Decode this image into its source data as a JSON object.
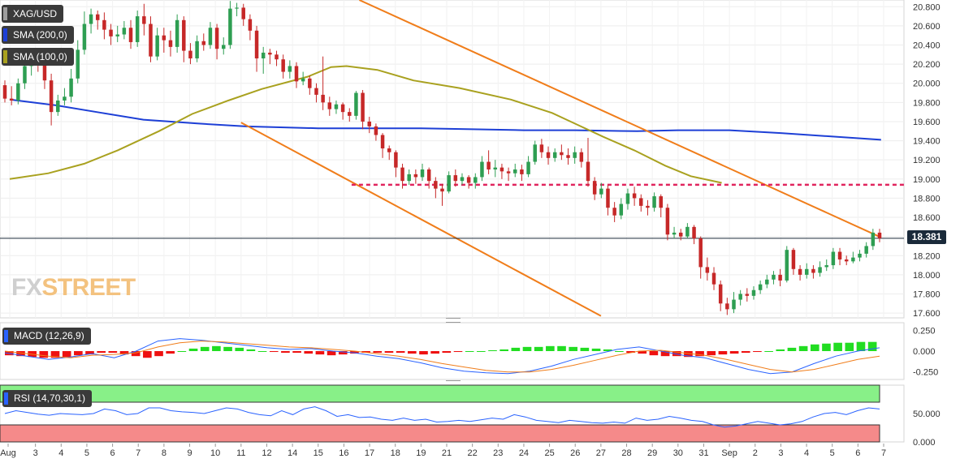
{
  "symbol": "XAG/USD",
  "legend": [
    {
      "label": "SMA (200,0)",
      "color": "#1d3fd6"
    },
    {
      "label": "SMA (100,0)",
      "color": "#a9a11f"
    }
  ],
  "last_price": "18.381",
  "watermark": {
    "part1": "FX",
    "part2": "STREET"
  },
  "chart_data": {
    "type": "candlestick",
    "y_ticks": [
      "20.800",
      "20.600",
      "20.400",
      "20.200",
      "20.000",
      "19.800",
      "19.600",
      "19.400",
      "19.200",
      "19.000",
      "18.800",
      "18.600",
      "18.400",
      "18.200",
      "18.000",
      "17.800",
      "17.600"
    ],
    "ylim": [
      17.55,
      20.87
    ],
    "x_ticks": [
      "Aug",
      "3",
      "4",
      "5",
      "6",
      "7",
      "8",
      "9",
      "10",
      "11",
      "12",
      "14",
      "15",
      "16",
      "17",
      "18",
      "19",
      "21",
      "22",
      "23",
      "24",
      "25",
      "26",
      "27",
      "28",
      "29",
      "30",
      "31",
      "Sep",
      "2",
      "3",
      "4",
      "5",
      "6",
      "7"
    ],
    "session_count": 34,
    "series": [
      {
        "name": "SMA (200,0)",
        "color": "#1d3fd6",
        "points": [
          [
            0,
            19.83
          ],
          [
            1.8,
            19.77
          ],
          [
            3.6,
            19.69
          ],
          [
            5.2,
            19.62
          ],
          [
            7.3,
            19.58
          ],
          [
            9.2,
            19.55
          ],
          [
            12,
            19.53
          ],
          [
            16,
            19.53
          ],
          [
            18,
            19.52
          ],
          [
            20,
            19.51
          ],
          [
            22,
            19.51
          ],
          [
            24.4,
            19.5
          ],
          [
            26,
            19.51
          ],
          [
            28,
            19.51
          ],
          [
            30,
            19.48
          ],
          [
            33.9,
            19.41
          ]
        ]
      },
      {
        "name": "SMA (100,0)",
        "color": "#a9a11f",
        "points": [
          [
            0,
            19.0
          ],
          [
            1.5,
            19.06
          ],
          [
            2.9,
            19.16
          ],
          [
            4.2,
            19.3
          ],
          [
            5.8,
            19.5
          ],
          [
            7.1,
            19.68
          ],
          [
            8.5,
            19.82
          ],
          [
            9.8,
            19.94
          ],
          [
            11.6,
            20.07
          ],
          [
            12.5,
            20.17
          ],
          [
            13.1,
            20.18
          ],
          [
            14.3,
            20.14
          ],
          [
            15.7,
            20.03
          ],
          [
            17.5,
            19.95
          ],
          [
            19.5,
            19.83
          ],
          [
            21.1,
            19.69
          ],
          [
            21.9,
            19.59
          ],
          [
            23.1,
            19.44
          ],
          [
            24.3,
            19.3
          ],
          [
            25.5,
            19.14
          ],
          [
            26.5,
            19.03
          ],
          [
            27.7,
            18.96
          ]
        ]
      },
      {
        "name": "",
        "color": "#2962ff",
        "values": [
          19.7,
          19.72,
          19.78,
          19.88,
          19.95,
          19.98,
          20.05,
          20.12,
          20.2,
          20.08,
          19.92,
          19.8,
          19.7,
          19.6,
          19.58,
          19.55,
          19.42,
          19.1,
          19.0,
          18.96,
          19.05,
          19.12,
          19.2,
          19.25,
          18.95,
          18.75,
          18.62,
          18.4,
          18.05,
          17.85,
          17.72,
          17.85,
          18.02,
          18.15,
          18.3,
          18.38
        ]
      }
    ],
    "candles": [
      [
        19.98,
        19.84,
        20.03,
        19.8
      ],
      [
        19.84,
        19.82,
        19.97,
        19.77
      ],
      [
        19.82,
        20.0,
        20.05,
        19.78
      ],
      [
        20.0,
        20.18,
        20.3,
        19.94
      ],
      [
        20.18,
        20.27,
        20.35,
        20.08
      ],
      [
        20.27,
        20.24,
        20.33,
        20.12
      ],
      [
        20.24,
        20.03,
        20.27,
        19.94
      ],
      [
        20.03,
        19.7,
        20.1,
        19.56
      ],
      [
        19.7,
        19.82,
        19.88,
        19.66
      ],
      [
        19.82,
        19.86,
        19.95,
        19.77
      ],
      [
        19.86,
        20.05,
        20.15,
        19.8
      ],
      [
        20.05,
        20.35,
        20.45,
        20.0
      ],
      [
        20.35,
        20.62,
        20.75,
        20.3
      ],
      [
        20.62,
        20.72,
        20.78,
        20.52
      ],
      [
        20.72,
        20.66,
        20.76,
        20.56
      ],
      [
        20.66,
        20.56,
        20.74,
        20.46
      ],
      [
        20.56,
        20.49,
        20.62,
        20.4
      ],
      [
        20.49,
        20.51,
        20.6,
        20.43
      ],
      [
        20.51,
        20.58,
        20.65,
        20.46
      ],
      [
        20.58,
        20.43,
        20.66,
        20.36
      ],
      [
        20.43,
        20.7,
        20.76,
        20.38
      ],
      [
        20.7,
        20.62,
        20.83,
        20.5
      ],
      [
        20.62,
        20.28,
        20.7,
        20.22
      ],
      [
        20.28,
        20.5,
        20.58,
        20.24
      ],
      [
        20.5,
        20.45,
        20.58,
        20.32
      ],
      [
        20.45,
        20.38,
        20.55,
        20.28
      ],
      [
        20.38,
        20.66,
        20.72,
        20.32
      ],
      [
        20.66,
        20.34,
        20.7,
        20.22
      ],
      [
        20.34,
        20.26,
        20.42,
        20.2
      ],
      [
        20.26,
        20.44,
        20.5,
        20.22
      ],
      [
        20.44,
        20.4,
        20.52,
        20.34
      ],
      [
        20.4,
        20.58,
        20.64,
        20.36
      ],
      [
        20.58,
        20.36,
        20.62,
        20.25
      ],
      [
        20.36,
        20.4,
        20.48,
        20.3
      ],
      [
        20.4,
        20.78,
        20.86,
        20.36
      ],
      [
        20.78,
        20.79,
        20.84,
        20.7
      ],
      [
        20.79,
        20.67,
        20.83,
        20.6
      ],
      [
        20.67,
        20.55,
        20.72,
        20.45
      ],
      [
        20.55,
        20.26,
        20.6,
        20.12
      ],
      [
        20.26,
        20.32,
        20.38,
        20.1
      ],
      [
        20.32,
        20.3,
        20.36,
        20.2
      ],
      [
        20.3,
        20.25,
        20.34,
        20.18
      ],
      [
        20.25,
        20.12,
        20.3,
        20.05
      ],
      [
        20.12,
        20.18,
        20.24,
        20.05
      ],
      [
        20.18,
        20.02,
        20.22,
        19.95
      ],
      [
        20.02,
        20.05,
        20.12,
        19.98
      ],
      [
        20.05,
        19.95,
        20.08,
        19.88
      ],
      [
        19.95,
        19.88,
        20.0,
        19.8
      ],
      [
        19.88,
        19.8,
        20.28,
        19.72
      ],
      [
        19.8,
        19.73,
        19.86,
        19.66
      ],
      [
        19.73,
        19.78,
        19.82,
        19.68
      ],
      [
        19.78,
        19.7,
        19.8,
        19.62
      ],
      [
        19.7,
        19.66,
        19.74,
        19.6
      ],
      [
        19.66,
        19.9,
        19.92,
        19.62
      ],
      [
        19.9,
        19.6,
        19.93,
        19.52
      ],
      [
        19.6,
        19.55,
        19.65,
        19.48
      ],
      [
        19.55,
        19.46,
        19.58,
        19.4
      ],
      [
        19.46,
        19.32,
        19.48,
        19.22
      ],
      [
        19.32,
        19.28,
        19.35,
        19.2
      ],
      [
        19.28,
        19.12,
        19.3,
        19.02
      ],
      [
        19.12,
        18.98,
        19.16,
        18.9
      ],
      [
        18.98,
        19.05,
        19.1,
        18.94
      ],
      [
        19.05,
        19.02,
        19.1,
        18.95
      ],
      [
        19.02,
        19.1,
        19.16,
        18.98
      ],
      [
        19.1,
        18.98,
        19.12,
        18.9
      ],
      [
        18.98,
        18.9,
        19.02,
        18.8
      ],
      [
        18.9,
        18.87,
        18.95,
        18.72
      ],
      [
        18.87,
        19.04,
        19.08,
        18.85
      ],
      [
        19.04,
        18.98,
        19.1,
        18.92
      ],
      [
        18.98,
        19.02,
        19.06,
        18.94
      ],
      [
        19.02,
        18.96,
        19.04,
        18.9
      ],
      [
        18.96,
        19.02,
        19.06,
        18.9
      ],
      [
        19.02,
        19.18,
        19.24,
        18.98
      ],
      [
        19.18,
        19.1,
        19.3,
        19.05
      ],
      [
        19.1,
        19.12,
        19.2,
        19.02
      ],
      [
        19.12,
        19.08,
        19.16,
        19.0
      ],
      [
        19.08,
        19.06,
        19.12,
        18.98
      ],
      [
        19.06,
        19.1,
        19.16,
        19.02
      ],
      [
        19.1,
        19.05,
        19.15,
        18.98
      ],
      [
        19.05,
        19.18,
        19.24,
        19.02
      ],
      [
        19.18,
        19.36,
        19.4,
        19.15
      ],
      [
        19.36,
        19.28,
        19.42,
        19.22
      ],
      [
        19.28,
        19.22,
        19.34,
        19.15
      ],
      [
        19.22,
        19.28,
        19.32,
        19.18
      ],
      [
        19.28,
        19.25,
        19.36,
        19.2
      ],
      [
        19.25,
        19.22,
        19.32,
        19.15
      ],
      [
        19.22,
        19.28,
        19.34,
        19.16
      ],
      [
        19.28,
        19.18,
        19.32,
        19.12
      ],
      [
        19.18,
        18.98,
        19.43,
        18.92
      ],
      [
        18.98,
        18.84,
        19.02,
        18.78
      ],
      [
        18.84,
        18.9,
        18.96,
        18.8
      ],
      [
        18.9,
        18.7,
        18.94,
        18.62
      ],
      [
        18.7,
        18.62,
        18.76,
        18.55
      ],
      [
        18.62,
        18.74,
        18.8,
        18.58
      ],
      [
        18.74,
        18.85,
        18.9,
        18.68
      ],
      [
        18.85,
        18.8,
        18.92,
        18.72
      ],
      [
        18.8,
        18.72,
        18.84,
        18.66
      ],
      [
        18.72,
        18.7,
        18.78,
        18.62
      ],
      [
        18.7,
        18.82,
        18.86,
        18.66
      ],
      [
        18.82,
        18.7,
        18.84,
        18.6
      ],
      [
        18.7,
        18.42,
        18.74,
        18.36
      ],
      [
        18.42,
        18.44,
        18.5,
        18.38
      ],
      [
        18.44,
        18.4,
        18.48,
        18.36
      ],
      [
        18.4,
        18.5,
        18.54,
        18.38
      ],
      [
        18.5,
        18.38,
        18.52,
        18.32
      ],
      [
        18.38,
        18.08,
        18.4,
        17.96
      ],
      [
        18.08,
        18.02,
        18.18,
        17.94
      ],
      [
        18.02,
        17.9,
        18.08,
        17.84
      ],
      [
        17.9,
        17.7,
        17.94,
        17.62
      ],
      [
        17.7,
        17.64,
        17.76,
        17.58
      ],
      [
        17.64,
        17.74,
        17.82,
        17.6
      ],
      [
        17.74,
        17.8,
        17.84,
        17.68
      ],
      [
        17.8,
        17.78,
        17.86,
        17.72
      ],
      [
        17.78,
        17.84,
        17.88,
        17.74
      ],
      [
        17.84,
        17.9,
        17.94,
        17.8
      ],
      [
        17.9,
        17.95,
        18.0,
        17.86
      ],
      [
        17.95,
        18.0,
        18.04,
        17.9
      ],
      [
        18.0,
        17.94,
        18.06,
        17.88
      ],
      [
        17.94,
        18.26,
        18.3,
        17.92
      ],
      [
        18.26,
        18.06,
        18.28,
        18.0
      ],
      [
        18.06,
        18.0,
        18.1,
        17.94
      ],
      [
        18.0,
        18.06,
        18.12,
        17.96
      ],
      [
        18.06,
        18.02,
        18.1,
        17.96
      ],
      [
        18.02,
        18.08,
        18.14,
        17.98
      ],
      [
        18.08,
        18.1,
        18.16,
        18.04
      ],
      [
        18.1,
        18.24,
        18.28,
        18.06
      ],
      [
        18.24,
        18.16,
        18.28,
        18.1
      ],
      [
        18.16,
        18.14,
        18.2,
        18.1
      ],
      [
        18.14,
        18.18,
        18.24,
        18.12
      ],
      [
        18.18,
        18.22,
        18.26,
        18.14
      ],
      [
        18.22,
        18.3,
        18.34,
        18.18
      ],
      [
        18.3,
        18.44,
        18.48,
        18.26
      ],
      [
        18.44,
        18.381,
        18.48,
        18.34
      ]
    ],
    "channel_upper": [
      [
        13.6,
        20.87
      ],
      [
        33.9,
        18.39
      ]
    ],
    "channel_lower": [
      [
        9.0,
        19.59
      ],
      [
        23.0,
        17.57
      ]
    ],
    "support_level": 18.94,
    "support_from": 13.3,
    "macd": {
      "label": "MACD (12,26,9)",
      "ticks": [
        "0.250",
        "0.000",
        "-0.250"
      ],
      "ylim": [
        -0.34,
        0.34
      ],
      "histogram": [
        -0.05,
        -0.06,
        -0.07,
        -0.08,
        -0.08,
        -0.07,
        -0.05,
        -0.04,
        -0.02,
        -0.02,
        -0.04,
        -0.06,
        -0.08,
        -0.06,
        -0.03,
        0.0,
        0.03,
        0.05,
        0.06,
        0.05,
        0.04,
        0.02,
        0.0,
        -0.01,
        -0.02,
        -0.02,
        -0.03,
        -0.04,
        -0.05,
        -0.04,
        -0.03,
        -0.02,
        -0.02,
        -0.02,
        -0.02,
        -0.03,
        -0.04,
        -0.03,
        -0.02,
        -0.01,
        0.0,
        0.0,
        0.01,
        0.02,
        0.04,
        0.05,
        0.05,
        0.06,
        0.06,
        0.05,
        0.04,
        0.03,
        0.02,
        0.0,
        -0.02,
        -0.03,
        -0.05,
        -0.06,
        -0.06,
        -0.07,
        -0.06,
        -0.05,
        -0.04,
        -0.03,
        -0.02,
        -0.01,
        0.0,
        0.02,
        0.04,
        0.06,
        0.08,
        0.09,
        0.1,
        0.1,
        0.11,
        0.11
      ],
      "macd_line": [
        -0.02,
        -0.06,
        -0.1,
        -0.07,
        -0.03,
        -0.08,
        0.0,
        0.12,
        0.15,
        0.13,
        0.1,
        0.07,
        0.04,
        0.02,
        0.03,
        0.0,
        -0.02,
        -0.06,
        -0.09,
        -0.14,
        -0.2,
        -0.24,
        -0.26,
        -0.27,
        -0.24,
        -0.18,
        -0.1,
        -0.04,
        0.02,
        0.05,
        0.0,
        -0.05,
        -0.08,
        -0.15,
        -0.22,
        -0.27,
        -0.25,
        -0.15,
        -0.06,
        0.0,
        0.04
      ],
      "signal_line": [
        0.0,
        -0.03,
        -0.06,
        -0.08,
        -0.05,
        -0.04,
        -0.02,
        0.05,
        0.1,
        0.12,
        0.11,
        0.09,
        0.07,
        0.05,
        0.04,
        0.02,
        0.0,
        -0.03,
        -0.06,
        -0.1,
        -0.15,
        -0.19,
        -0.23,
        -0.25,
        -0.25,
        -0.22,
        -0.17,
        -0.11,
        -0.05,
        0.0,
        0.01,
        -0.02,
        -0.05,
        -0.1,
        -0.16,
        -0.22,
        -0.25,
        -0.22,
        -0.16,
        -0.1,
        -0.06
      ]
    },
    "rsi": {
      "label": "RSI (14,70,30,1)",
      "ticks": [
        "50.000",
        "0.000"
      ],
      "ylim": [
        0,
        100
      ],
      "overbought": 70,
      "oversold": 30,
      "values": [
        50,
        55,
        52,
        49,
        47,
        50,
        49,
        48,
        50,
        58,
        55,
        48,
        50,
        60,
        60,
        55,
        53,
        52,
        50,
        55,
        60,
        58,
        52,
        48,
        46,
        55,
        48,
        58,
        62,
        55,
        45,
        48,
        43,
        44,
        40,
        38,
        42,
        38,
        40,
        35,
        36,
        38,
        36,
        39,
        42,
        40,
        48,
        44,
        38,
        36,
        34,
        38,
        36,
        34,
        33,
        35,
        33,
        42,
        38,
        40,
        45,
        42,
        38,
        36,
        30,
        26,
        28,
        32,
        36,
        33,
        30,
        32,
        36,
        44,
        50,
        52,
        48,
        55,
        60,
        58
      ]
    }
  }
}
